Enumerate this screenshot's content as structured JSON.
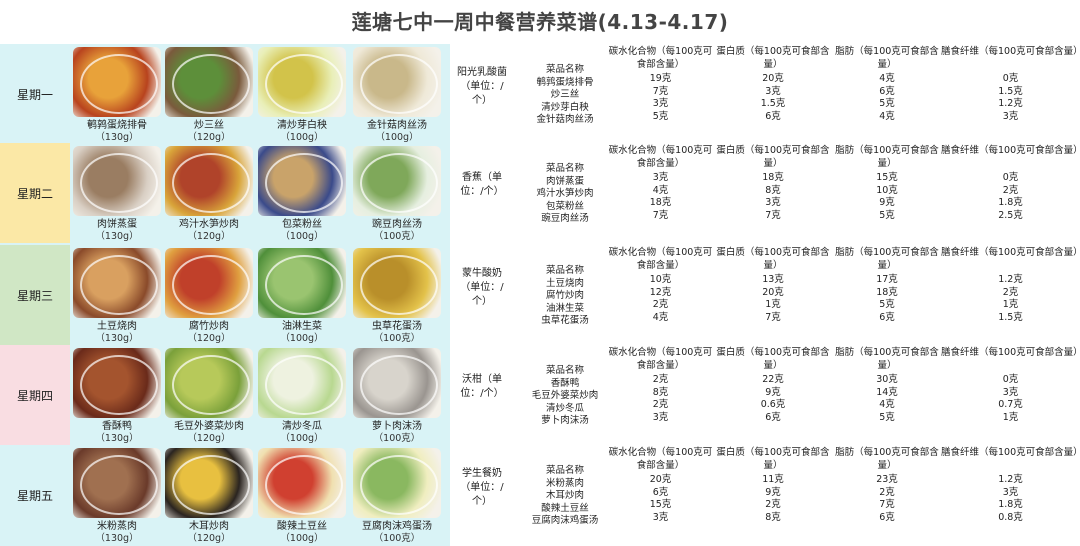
{
  "title": "莲塘七中一周中餐营养菜谱(4.13-4.17)",
  "headers": {
    "dish": "菜品名称",
    "carbs": "碳水化合物（每100克可食部含量）",
    "protein": "蛋白质（每100克可食部含量）",
    "fat": "脂肪（每100克可食部含量）",
    "fiber": "膳食纤维（每100克可食部含量）"
  },
  "days": [
    {
      "label": "星期一",
      "color": "#d9f3f6",
      "fruit": "阳光乳酸菌（单位：/个）",
      "dishes": [
        {
          "name": "鹌鹑蛋烧排骨",
          "weight": "（130g）",
          "c1": "#b8431e",
          "c2": "#e8a23a"
        },
        {
          "name": "炒三丝",
          "weight": "（120g）",
          "c1": "#7a5a3c",
          "c2": "#5d8f3a"
        },
        {
          "name": "清炒芽白秧",
          "weight": "（100g）",
          "c1": "#e9efb8",
          "c2": "#d2c34a"
        },
        {
          "name": "金针菇肉丝汤",
          "weight": "（100g）",
          "c1": "#efe9d8",
          "c2": "#c9b88a"
        }
      ],
      "rows": [
        {
          "dish": "鹌鹑蛋烧排骨",
          "carbs": "19克",
          "protein": "20克",
          "fat": "4克",
          "fiber": "0克"
        },
        {
          "dish": "炒三丝",
          "carbs": "7克",
          "protein": "3克",
          "fat": "6克",
          "fiber": "1.5克"
        },
        {
          "dish": "清炒芽白秧",
          "carbs": "3克",
          "protein": "1.5克",
          "fat": "5克",
          "fiber": "1.2克"
        },
        {
          "dish": "金针菇肉丝汤",
          "carbs": "5克",
          "protein": "6克",
          "fat": "4克",
          "fiber": "3克"
        }
      ]
    },
    {
      "label": "星期二",
      "color": "#fbe8a6",
      "fruit": "香蕉（单位：/个）",
      "dishes": [
        {
          "name": "肉饼蒸蛋",
          "weight": "（130g）",
          "c1": "#d9cfc4",
          "c2": "#9a7d62"
        },
        {
          "name": "鸡汁水笋炒肉",
          "weight": "（120g）",
          "c1": "#d9a53a",
          "c2": "#b0432a"
        },
        {
          "name": "包菜粉丝",
          "weight": "（100g）",
          "c1": "#3a4a8a",
          "c2": "#c9a36a"
        },
        {
          "name": "豌豆肉丝汤",
          "weight": "（100克）",
          "c1": "#e6efe0",
          "c2": "#7fa85a"
        }
      ],
      "rows": [
        {
          "dish": "肉饼蒸蛋",
          "carbs": "3克",
          "protein": "18克",
          "fat": "15克",
          "fiber": "0克"
        },
        {
          "dish": "鸡汁水笋炒肉",
          "carbs": "4克",
          "protein": "8克",
          "fat": "10克",
          "fiber": "2克"
        },
        {
          "dish": "包菜粉丝",
          "carbs": "18克",
          "protein": "3克",
          "fat": "9克",
          "fiber": "1.8克"
        },
        {
          "dish": "豌豆肉丝汤",
          "carbs": "7克",
          "protein": "7克",
          "fat": "5克",
          "fiber": "2.5克"
        }
      ]
    },
    {
      "label": "星期三",
      "color": "#d0e7c5",
      "fruit": "蒙牛酸奶（单位：/个）",
      "dishes": [
        {
          "name": "土豆烧肉",
          "weight": "（130g）",
          "c1": "#8a4a2a",
          "c2": "#d9a060"
        },
        {
          "name": "腐竹炒肉",
          "weight": "（120g）",
          "c1": "#e0a040",
          "c2": "#c0402a"
        },
        {
          "name": "油淋生菜",
          "weight": "（100g）",
          "c1": "#4f8f3a",
          "c2": "#9ac470"
        },
        {
          "name": "虫草花蛋汤",
          "weight": "（100克）",
          "c1": "#e3c24a",
          "c2": "#b98f2a"
        }
      ],
      "rows": [
        {
          "dish": "土豆烧肉",
          "carbs": "10克",
          "protein": "13克",
          "fat": "17克",
          "fiber": "1.2克"
        },
        {
          "dish": "腐竹炒肉",
          "carbs": "12克",
          "protein": "20克",
          "fat": "18克",
          "fiber": "2克"
        },
        {
          "dish": "油淋生菜",
          "carbs": "2克",
          "protein": "1克",
          "fat": "5克",
          "fiber": "1克"
        },
        {
          "dish": "虫草花蛋汤",
          "carbs": "4克",
          "protein": "7克",
          "fat": "6克",
          "fiber": "1.5克"
        }
      ]
    },
    {
      "label": "星期四",
      "color": "#f9dde2",
      "fruit": "沃柑（单位：/个）",
      "dishes": [
        {
          "name": "香酥鸭",
          "weight": "（130g）",
          "c1": "#6a2a1a",
          "c2": "#a4542e"
        },
        {
          "name": "毛豆外婆菜炒肉",
          "weight": "（120g）",
          "c1": "#7aa03a",
          "c2": "#b7c95a"
        },
        {
          "name": "清炒冬瓜",
          "weight": "（100g）",
          "c1": "#b8d890",
          "c2": "#eef2e0"
        },
        {
          "name": "萝卜肉沫汤",
          "weight": "（100克）",
          "c1": "#9a9590",
          "c2": "#d8d4cc"
        }
      ],
      "rows": [
        {
          "dish": "香酥鸭",
          "carbs": "2克",
          "protein": "22克",
          "fat": "30克",
          "fiber": "0克"
        },
        {
          "dish": "毛豆外婆菜炒肉",
          "carbs": "8克",
          "protein": "9克",
          "fat": "14克",
          "fiber": "3克"
        },
        {
          "dish": "清炒冬瓜",
          "carbs": "2克",
          "protein": "0.6克",
          "fat": "4克",
          "fiber": "0.7克"
        },
        {
          "dish": "萝卜肉沫汤",
          "carbs": "3克",
          "protein": "6克",
          "fat": "5克",
          "fiber": "1克"
        }
      ]
    },
    {
      "label": "星期五",
      "color": "#d9f3f6",
      "fruit": "学生餐奶（单位：/个）",
      "dishes": [
        {
          "name": "米粉蒸肉",
          "weight": "（130g）",
          "c1": "#6a3a2a",
          "c2": "#a07050"
        },
        {
          "name": "木耳炒肉",
          "weight": "（120g）",
          "c1": "#2a2420",
          "c2": "#e8c040"
        },
        {
          "name": "酸辣土豆丝",
          "weight": "（100g）",
          "c1": "#f0e0b0",
          "c2": "#d04030"
        },
        {
          "name": "豆腐肉沫鸡蛋汤",
          "weight": "（100克）",
          "c1": "#f0eec0",
          "c2": "#8ab860"
        }
      ],
      "rows": [
        {
          "dish": "米粉蒸肉",
          "carbs": "20克",
          "protein": "11克",
          "fat": "23克",
          "fiber": "1.2克"
        },
        {
          "dish": "木耳炒肉",
          "carbs": "6克",
          "protein": "9克",
          "fat": "2克",
          "fiber": "3克"
        },
        {
          "dish": "酸辣土豆丝",
          "carbs": "15克",
          "protein": "2克",
          "fat": "7克",
          "fiber": "1.8克"
        },
        {
          "dish": "豆腐肉沫鸡蛋汤",
          "carbs": "3克",
          "protein": "8克",
          "fat": "6克",
          "fiber": "0.8克"
        }
      ]
    }
  ]
}
